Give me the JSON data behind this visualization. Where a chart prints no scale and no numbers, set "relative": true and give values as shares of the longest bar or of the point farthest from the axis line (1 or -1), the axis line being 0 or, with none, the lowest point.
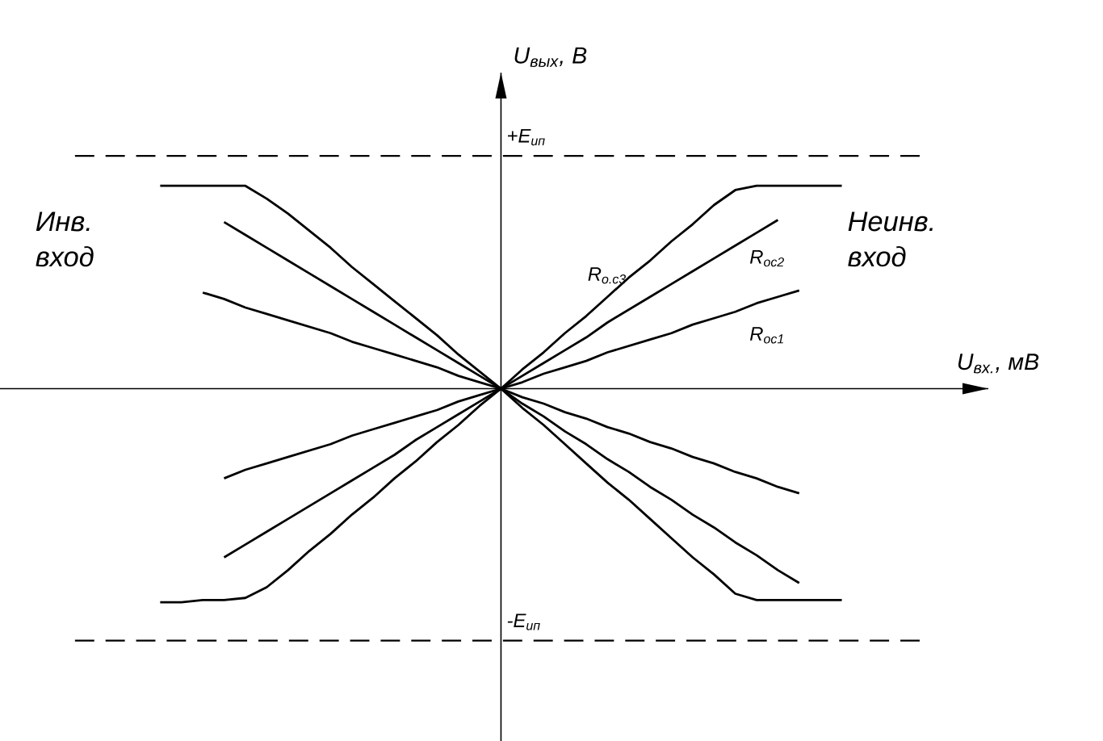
{
  "chart_data": {
    "type": "line",
    "relative": true,
    "marker": "none",
    "line_style": "solid",
    "annotations": [
      "Инв. вход",
      "Неинв. вход",
      "U$_{вх.}$, мВ",
      "U$_{вых}$, В"
    ],
    "ref_lines": [
      {
        "axis": "y",
        "value": 1.09,
        "label": "+E$_{ип}$",
        "line_style": "dashed",
        "color": "#000000"
      },
      {
        "axis": "y",
        "value": -1.18,
        "label": "-E$_{ип}$",
        "line_style": "dashed",
        "color": "#000000"
      }
    ],
    "categories": [
      null,
      null,
      null,
      null,
      null,
      null,
      null,
      null,
      null,
      null,
      null,
      null,
      null,
      null,
      null,
      null,
      null,
      null,
      null,
      null,
      null,
      null,
      null,
      null,
      null,
      null,
      null,
      null,
      null,
      null,
      null,
      null,
      null
    ],
    "series": [
      {
        "name": "R$_{о.с3}$",
        "color": "#000000",
        "values": [
          -1,
          -1,
          -0.99,
          -0.99,
          -0.98,
          -0.93,
          -0.85,
          -0.76,
          -0.68,
          -0.59,
          -0.51,
          -0.42,
          -0.34,
          -0.25,
          -0.17,
          -0.08,
          0,
          0.09,
          0.17,
          0.26,
          0.34,
          0.43,
          0.52,
          0.6,
          0.69,
          0.77,
          0.86,
          0.93,
          0.95,
          0.95,
          0.95,
          0.95,
          0.95
        ]
      },
      {
        "name": "R$_{ос2}$",
        "color": "#000000",
        "values": [
          null,
          null,
          null,
          -0.79,
          -0.73,
          -0.67,
          -0.61,
          -0.55,
          -0.49,
          -0.43,
          -0.37,
          -0.31,
          -0.24,
          -0.18,
          -0.12,
          -0.06,
          0,
          0.06,
          0.12,
          0.18,
          0.24,
          0.31,
          0.37,
          0.43,
          0.49,
          0.55,
          0.61,
          0.67,
          0.73,
          0.79,
          null,
          null,
          null
        ]
      },
      {
        "name": "R$_{ос1}$",
        "color": "#000000",
        "values": [
          null,
          null,
          null,
          -0.42,
          -0.38,
          -0.35,
          -0.32,
          -0.29,
          -0.26,
          -0.22,
          -0.19,
          -0.16,
          -0.13,
          -0.1,
          -0.06,
          -0.03,
          0,
          0.03,
          0.07,
          0.1,
          0.13,
          0.17,
          0.2,
          0.23,
          0.26,
          0.3,
          0.33,
          0.36,
          0.4,
          0.43,
          0.46,
          null,
          null
        ]
      },
      {
        "color": "#000000",
        "values": [
          0.95,
          0.95,
          0.95,
          0.95,
          0.95,
          0.89,
          0.82,
          0.74,
          0.66,
          0.57,
          0.49,
          0.41,
          0.33,
          0.25,
          0.16,
          0.08,
          0,
          -0.09,
          -0.17,
          -0.26,
          -0.35,
          -0.44,
          -0.52,
          -0.61,
          -0.7,
          -0.79,
          -0.87,
          -0.96,
          -0.99,
          -0.99,
          -0.99,
          -0.99,
          -0.99
        ]
      },
      {
        "color": "#000000",
        "values": [
          null,
          null,
          null,
          0.78,
          0.72,
          0.66,
          0.6,
          0.54,
          0.48,
          0.42,
          0.36,
          0.3,
          0.24,
          0.18,
          0.12,
          0.06,
          0,
          -0.07,
          -0.13,
          -0.2,
          -0.26,
          -0.33,
          -0.39,
          -0.46,
          -0.52,
          -0.59,
          -0.65,
          -0.72,
          -0.78,
          -0.85,
          -0.91,
          null,
          null
        ]
      },
      {
        "color": "#000000",
        "values": [
          null,
          null,
          0.45,
          0.42,
          0.38,
          0.35,
          0.32,
          0.29,
          0.26,
          0.22,
          0.19,
          0.16,
          0.13,
          0.1,
          0.06,
          0.03,
          0,
          -0.04,
          -0.07,
          -0.11,
          -0.14,
          -0.18,
          -0.21,
          -0.25,
          -0.28,
          -0.32,
          -0.35,
          -0.39,
          -0.42,
          -0.46,
          -0.49,
          null,
          null
        ]
      }
    ]
  }
}
